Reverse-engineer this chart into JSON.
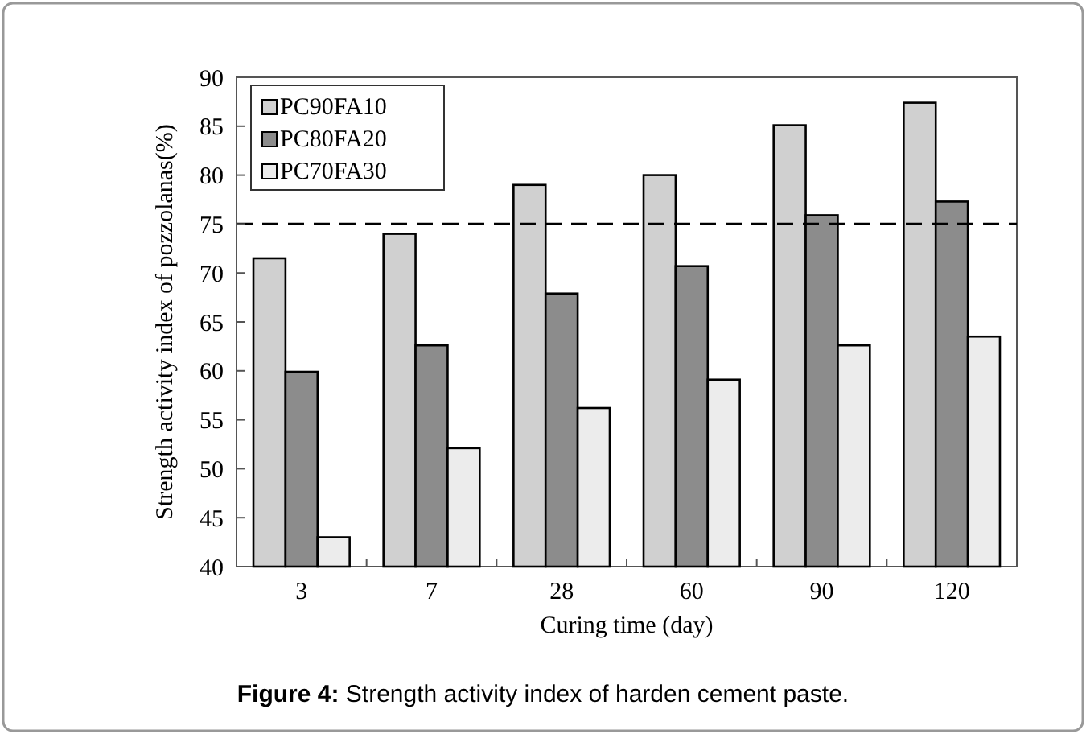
{
  "chart_data": {
    "type": "bar",
    "title": "Figure 4: Strength activity index of harden cement paste.",
    "xlabel": "Curing time (day)",
    "ylabel": "Strength activity index of pozzolanas(%)",
    "categories": [
      "3",
      "7",
      "28",
      "60",
      "90",
      "120"
    ],
    "series": [
      {
        "name": "PC90FA10",
        "color": "#d0d0d0",
        "values": [
          71.5,
          74.0,
          79.0,
          80.0,
          85.1,
          87.4
        ]
      },
      {
        "name": "PC80FA20",
        "color": "#8c8c8c",
        "values": [
          59.9,
          62.6,
          67.9,
          70.7,
          75.9,
          77.3
        ]
      },
      {
        "name": "PC70FA30",
        "color": "#ececec",
        "values": [
          43.0,
          52.1,
          56.2,
          59.1,
          62.6,
          63.5
        ]
      }
    ],
    "ylim": [
      40,
      90
    ],
    "yticks": [
      40,
      45,
      50,
      55,
      60,
      65,
      70,
      75,
      80,
      85,
      90
    ],
    "grid": false,
    "legend": "top left",
    "ref_lines": [
      {
        "axis": "y",
        "value": 75,
        "line_style": "dashed",
        "color": "#000000"
      }
    ]
  }
}
